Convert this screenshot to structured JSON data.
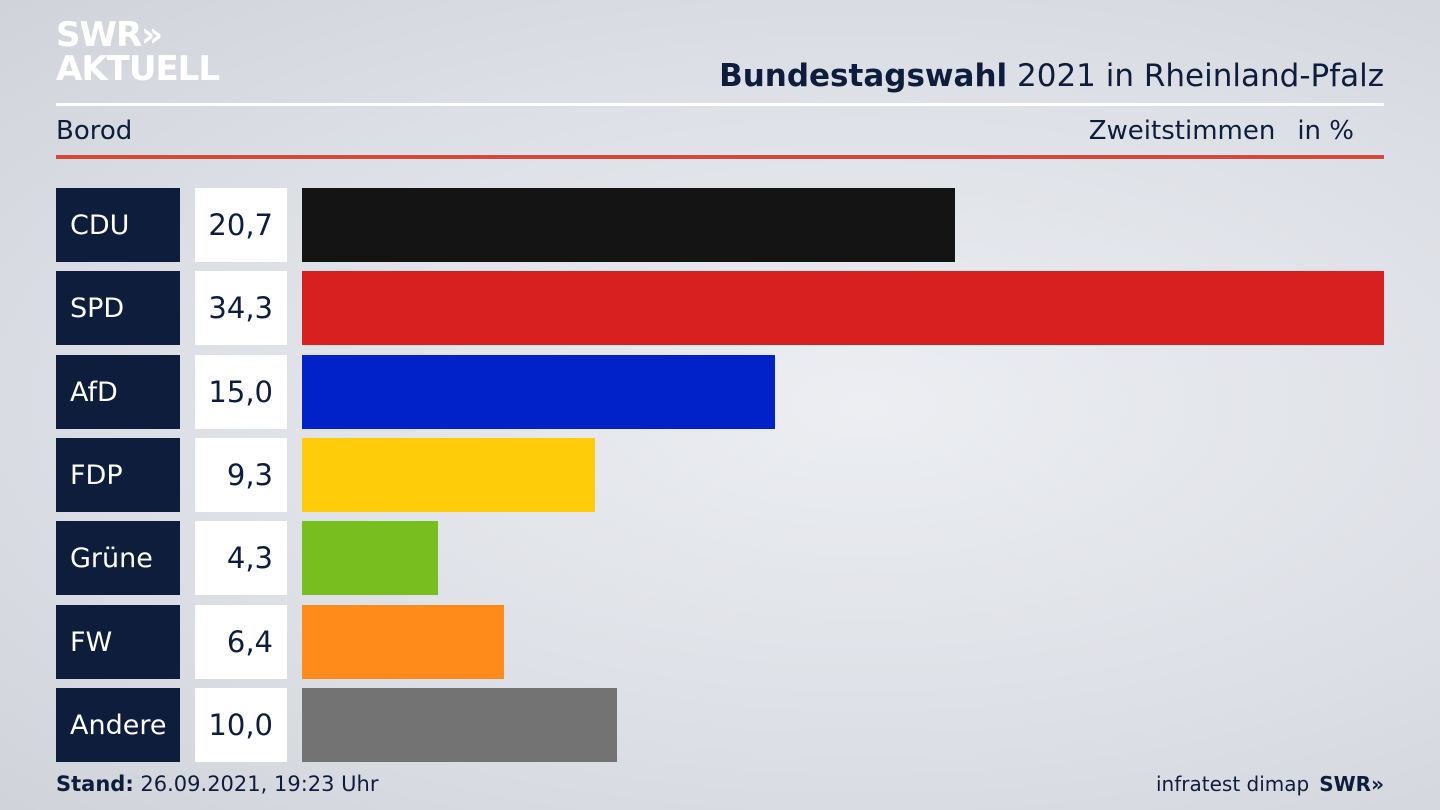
{
  "header": {
    "logo_line1": "SWR»",
    "logo_line2": "AKTUELL",
    "title_bold": "Bundestagswahl",
    "title_rest": " 2021 in Rheinland-Pfalz",
    "subtitle": "Borod",
    "measure": "Zweitstimmen",
    "unit": "in %"
  },
  "footer": {
    "stand_label": "Stand:",
    "stand_value": " 26.09.2021, 19:23 Uhr",
    "source": "infratest dimap",
    "source_logo": "SWR»"
  },
  "chart_data": {
    "type": "bar",
    "orientation": "horizontal",
    "title": "Bundestagswahl 2021 in Rheinland-Pfalz",
    "subtitle": "Borod",
    "xlabel": "Zweitstimmen in %",
    "categories": [
      "CDU",
      "SPD",
      "AfD",
      "FDP",
      "Grüne",
      "FW",
      "Andere"
    ],
    "values": [
      20.7,
      34.3,
      15.0,
      9.3,
      4.3,
      6.4,
      10.0
    ],
    "value_labels": [
      "20,7",
      "34,3",
      "15,0",
      "9,3",
      "4,3",
      "6,4",
      "10,0"
    ],
    "colors": [
      "#141414",
      "#d82020",
      "#0022c8",
      "#ffcc0a",
      "#78be1e",
      "#ff8c1a",
      "#737373"
    ],
    "xlim": [
      0,
      34.3
    ]
  }
}
